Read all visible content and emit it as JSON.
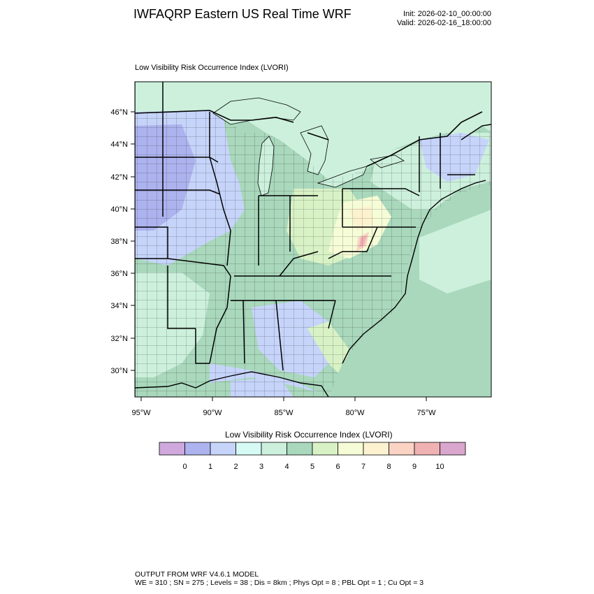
{
  "header": {
    "title": "IWFAQRP Eastern US Real Time WRF",
    "init": "Init: 2026-02-10_00:00:00",
    "valid": "Valid: 2026-02-16_18:00:00"
  },
  "map": {
    "panel_title": "Low Visibility Risk Occurrence Index   (LVORI)",
    "lat_labels": [
      "46°N",
      "44°N",
      "42°N",
      "40°N",
      "38°N",
      "36°N",
      "34°N",
      "32°N",
      "30°N"
    ],
    "lon_labels": [
      "95°W",
      "90°W",
      "85°W",
      "80°W",
      "75°W"
    ],
    "lat_range": [
      28.3,
      47.9
    ],
    "lon_range": [
      -95.5,
      -70.3
    ]
  },
  "colorbar": {
    "title": "Low Visibility Risk Occurrence Index  (LVORI)",
    "colors": [
      "#cfa9de",
      "#adb3ee",
      "#c6d4fa",
      "#d6fbf5",
      "#ccf0dc",
      "#a9d8bc",
      "#d8f2c6",
      "#f5fcd6",
      "#fdf2d0",
      "#fad3c4",
      "#f0b1b3",
      "#d9a6cd"
    ],
    "labels": [
      "0",
      "1",
      "2",
      "3",
      "4",
      "5",
      "6",
      "7",
      "8",
      "9",
      "10"
    ]
  },
  "footer": {
    "line1": "OUTPUT FROM WRF V4.6.1 MODEL",
    "line2": "WE = 310 ; SN = 275 ; Levels = 38 ; Dis = 8km ; Phys Opt = 8 ; PBL Opt = 1 ; Cu Opt = 3"
  }
}
